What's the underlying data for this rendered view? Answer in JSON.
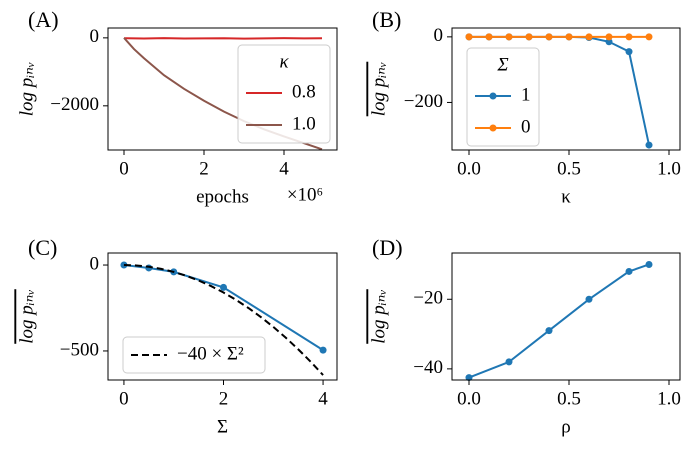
{
  "chart_data": [
    {
      "type": "line",
      "panel_label": "(A)",
      "xlabel": "epochs",
      "x_offset_label": "×10⁶",
      "ylabel": "log pᵢₙᵥ",
      "ylabel_overline": false,
      "xlim": [
        -400000,
        5325000
      ],
      "ylim": [
        -3300,
        290
      ],
      "xticks": [
        0,
        {
          "value": 2000000,
          "label": "2"
        },
        {
          "value": 4000000,
          "label": "4"
        }
      ],
      "yticks": [
        0,
        {
          "value": -2000,
          "label": "−2000"
        }
      ],
      "legend": {
        "title": "κ",
        "loc": "lower right"
      },
      "series": [
        {
          "name": "0.8",
          "color": "#d62728",
          "marker": false,
          "dash": false,
          "x": [
            0,
            500000,
            1000000,
            1500000,
            2000000,
            2500000,
            3000000,
            3500000,
            4000000,
            4500000,
            4950000
          ],
          "values": [
            -12,
            -18,
            -8,
            -20,
            -15,
            -10,
            -22,
            -14,
            -9,
            -17,
            -13
          ]
        },
        {
          "name": "1.0",
          "color": "#8c564b",
          "marker": false,
          "dash": false,
          "x": [
            0,
            250000,
            500000,
            1000000,
            1500000,
            2000000,
            2500000,
            3000000,
            3500000,
            4000000,
            4500000,
            4950000
          ],
          "values": [
            0,
            -330,
            -600,
            -1100,
            -1500,
            -1850,
            -2170,
            -2450,
            -2690,
            -2900,
            -3100,
            -3280
          ]
        }
      ]
    },
    {
      "type": "line",
      "panel_label": "(B)",
      "xlabel": "κ",
      "ylabel": "log pᵢₙᵥ",
      "ylabel_overline": true,
      "xlim": [
        -0.085,
        1.055
      ],
      "ylim": [
        -345,
        27
      ],
      "xticks": [
        {
          "value": 0,
          "label": "0.0"
        },
        0.5,
        {
          "value": 1,
          "label": "1.0"
        }
      ],
      "yticks": [
        0,
        {
          "value": -200,
          "label": "−200"
        }
      ],
      "legend": {
        "title": "Σ",
        "loc": "upper left"
      },
      "series": [
        {
          "name": "1",
          "color": "#1f77b4",
          "marker": true,
          "dash": false,
          "x": [
            0,
            0.1,
            0.2,
            0.3,
            0.4,
            0.5,
            0.6,
            0.7,
            0.8,
            0.9
          ],
          "values": [
            0,
            0,
            0,
            0,
            0,
            0,
            -2,
            -15,
            -45,
            -330
          ]
        },
        {
          "name": "0",
          "color": "#ff7f0e",
          "marker": true,
          "dash": false,
          "x": [
            0,
            0.1,
            0.2,
            0.3,
            0.4,
            0.5,
            0.6,
            0.7,
            0.8,
            0.9
          ],
          "values": [
            0,
            0,
            0,
            0,
            0,
            0,
            0,
            0,
            0,
            0
          ]
        }
      ]
    },
    {
      "type": "line",
      "panel_label": "(C)",
      "xlabel": "Σ",
      "ylabel": "log pᵢₙᵥ",
      "ylabel_overline": true,
      "xlim": [
        -0.32,
        4.28
      ],
      "ylim": [
        -669,
        70
      ],
      "xticks": [
        0,
        2,
        4
      ],
      "yticks": [
        0,
        {
          "value": -500,
          "label": "−500"
        }
      ],
      "legend": {
        "loc": "lower left"
      },
      "series": [
        {
          "color": "#1f77b4",
          "marker": true,
          "dash": false,
          "x": [
            0,
            0.5,
            1,
            2,
            4
          ],
          "values": [
            0,
            -17,
            -40,
            -130,
            -495
          ]
        },
        {
          "name": "−40 × Σ²",
          "color": "#000000",
          "marker": false,
          "dash": true,
          "x": [
            0,
            0.25,
            0.5,
            0.75,
            1,
            1.25,
            1.5,
            1.75,
            2,
            2.25,
            2.5,
            2.75,
            3,
            3.25,
            3.5,
            3.75,
            4
          ],
          "values": [
            0,
            -2.5,
            -10,
            -22.5,
            -40,
            -62.5,
            -90,
            -122.5,
            -160,
            -202.5,
            -250,
            -302.5,
            -360,
            -422.5,
            -490,
            -562.5,
            -640
          ]
        }
      ]
    },
    {
      "type": "line",
      "panel_label": "(D)",
      "xlabel": "ρ",
      "ylabel": "log pᵢₙᵥ",
      "ylabel_overline": true,
      "xlim": [
        -0.085,
        1.055
      ],
      "ylim": [
        -43.2,
        -6.7
      ],
      "xticks": [
        {
          "value": 0,
          "label": "0.0"
        },
        0.5,
        {
          "value": 1,
          "label": "1.0"
        }
      ],
      "yticks": [
        {
          "value": -20,
          "label": "−20"
        },
        {
          "value": -40,
          "label": "−40"
        }
      ],
      "series": [
        {
          "color": "#1f77b4",
          "marker": true,
          "dash": false,
          "x": [
            0,
            0.2,
            0.4,
            0.6,
            0.8,
            0.9
          ],
          "values": [
            -42.5,
            -38,
            -29,
            -20,
            -12,
            -10
          ]
        }
      ]
    }
  ]
}
